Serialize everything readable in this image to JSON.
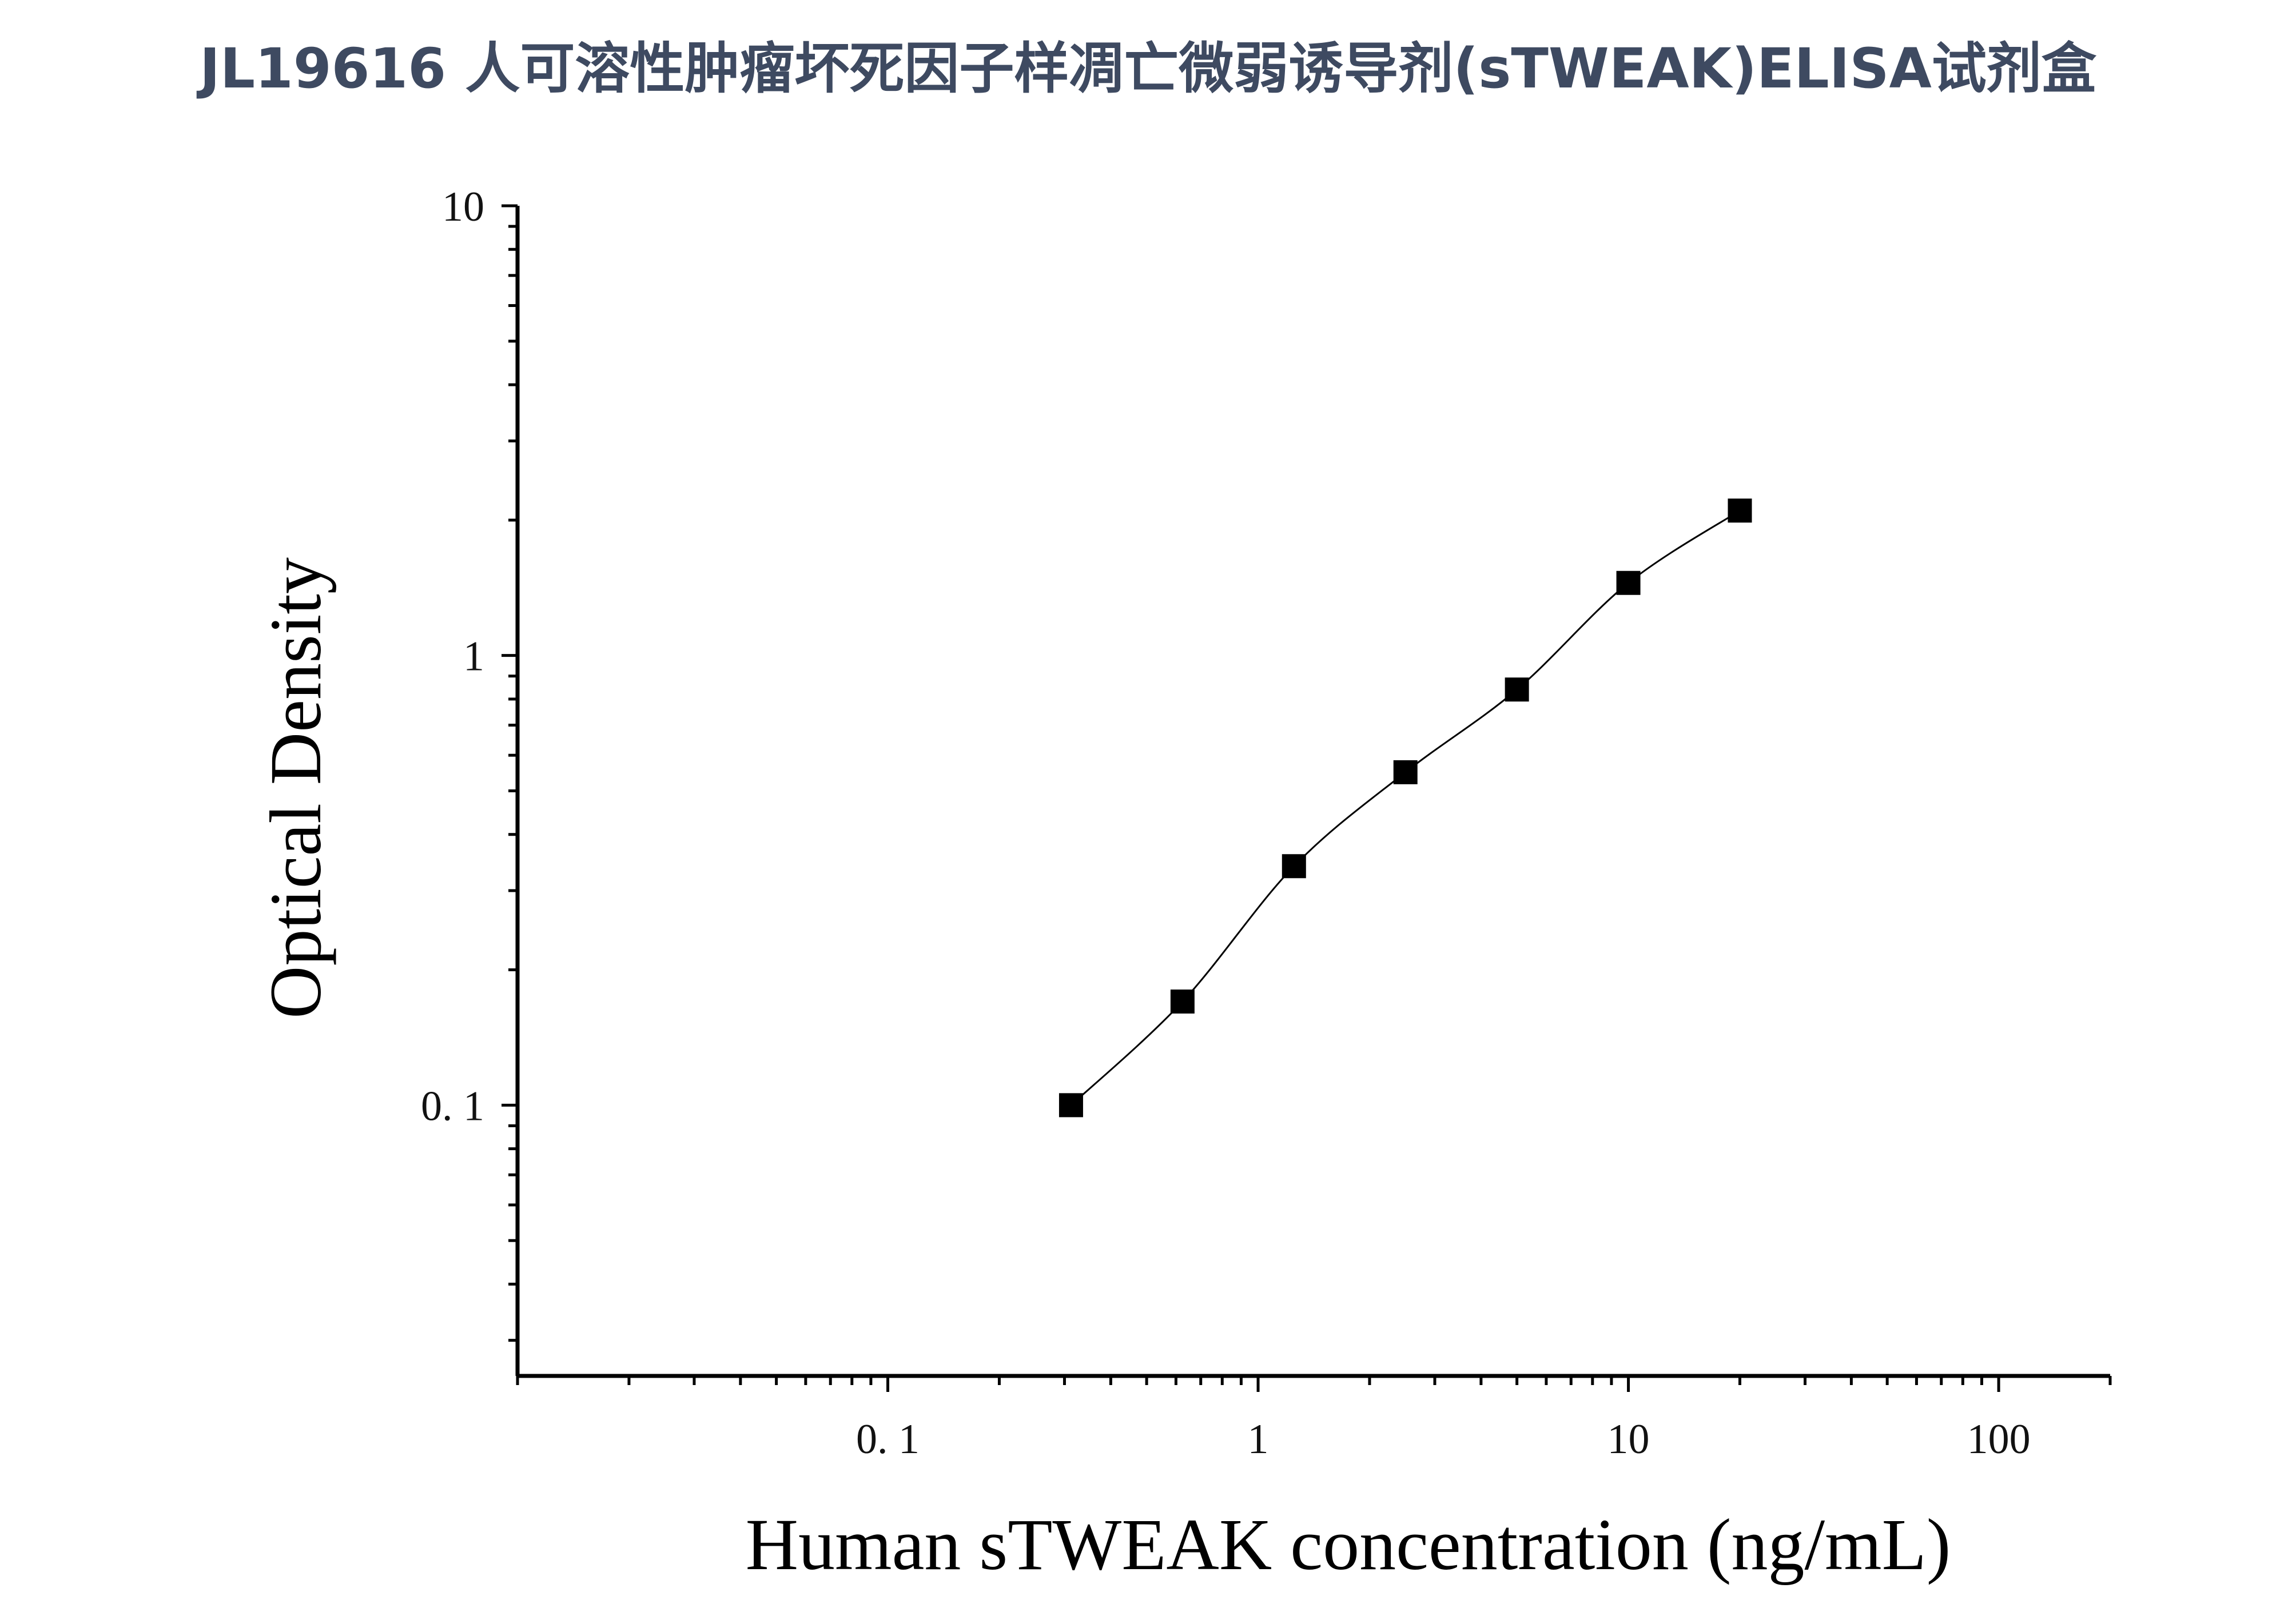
{
  "title": "JL19616 人可溶性肿瘤坏死因子样凋亡微弱诱导剂(sTWEAK)ELISA试剂盒",
  "chart_data": {
    "type": "scatter",
    "title": "JL19616 人可溶性肿瘤坏死因子样凋亡微弱诱导剂(sTWEAK)ELISA试剂盒",
    "xlabel": "Human sTWEAK concentration (ng/mL)",
    "ylabel": "Optical Density",
    "xscale": "log",
    "yscale": "log",
    "xlim": [
      0.01,
      200
    ],
    "ylim": [
      0.025,
      10
    ],
    "xticks": [
      0.1,
      1,
      10,
      100
    ],
    "xtick_labels": [
      "0. 1",
      "1",
      "10",
      "100"
    ],
    "yticks": [
      0.1,
      1,
      10
    ],
    "ytick_labels": [
      "0. 1",
      "1",
      "10"
    ],
    "grid": false,
    "legend": "none",
    "marker": "square",
    "marker_color": "#000000",
    "fit_line": true,
    "series": [
      {
        "x": [
          0.3125,
          0.625,
          1.25,
          2.5,
          5,
          10,
          20
        ],
        "y": [
          0.1,
          0.17,
          0.34,
          0.55,
          0.84,
          1.45,
          2.1
        ]
      }
    ]
  }
}
